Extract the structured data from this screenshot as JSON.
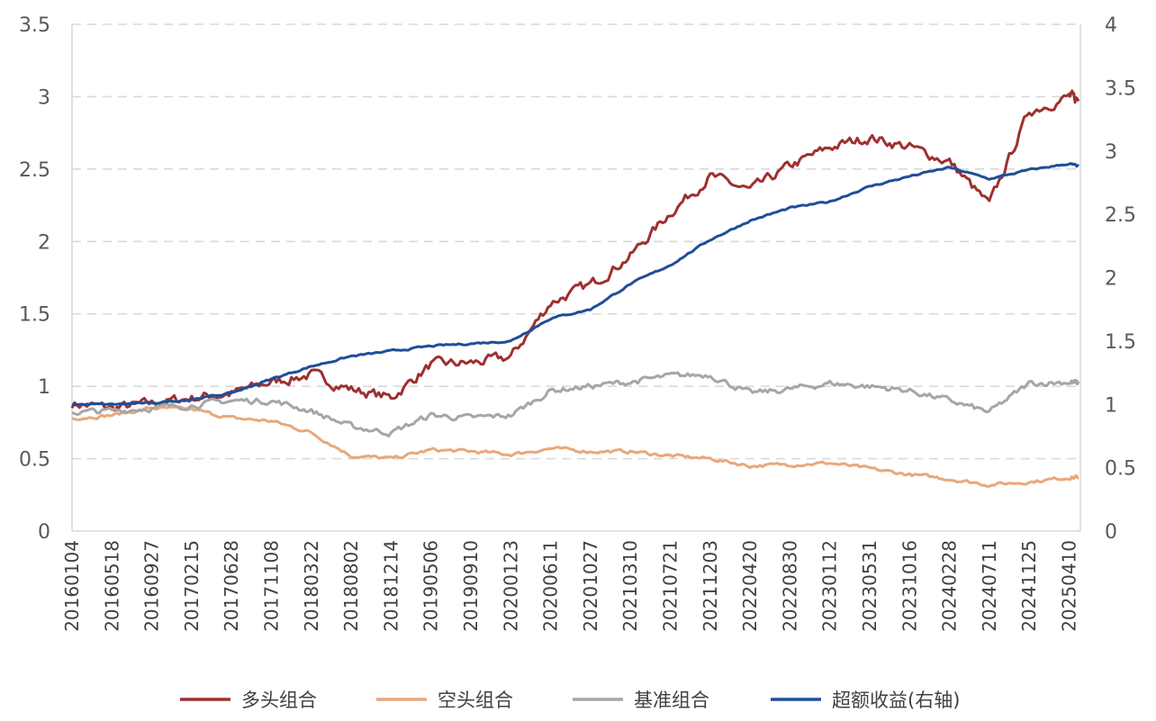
{
  "chart_data": {
    "type": "line",
    "title": "",
    "xlabel": "",
    "ylabel": "",
    "y2label": "超额收益(右轴)",
    "ylim": [
      0,
      3.5
    ],
    "y2lim": [
      0,
      4
    ],
    "yticks": [
      "0",
      "0.5",
      "1",
      "1.5",
      "2",
      "2.5",
      "3",
      "3.5"
    ],
    "y2ticks": [
      "0",
      "0.5",
      "1",
      "1.5",
      "2",
      "2.5",
      "3",
      "3.5",
      "4"
    ],
    "grid": true,
    "legend_position": "bottom",
    "x": [
      "20160104",
      "20160518",
      "20160927",
      "20170215",
      "20170628",
      "20171108",
      "20180322",
      "20180802",
      "20181214",
      "20190506",
      "20190910",
      "20200123",
      "20200611",
      "20201027",
      "20210310",
      "20210721",
      "20211203",
      "20220420",
      "20220830",
      "20230112",
      "20230531",
      "20231016",
      "20240228",
      "20240711",
      "20241125",
      "20250410"
    ],
    "x_end": "20250625",
    "series": [
      {
        "name": "多头组合",
        "axis": "left",
        "color": "#9e3030",
        "values": [
          0.88,
          0.85,
          0.88,
          0.92,
          0.95,
          1.03,
          1.08,
          0.98,
          0.92,
          1.15,
          1.16,
          1.2,
          1.58,
          1.7,
          1.9,
          2.2,
          2.45,
          2.35,
          2.52,
          2.65,
          2.72,
          2.65,
          2.55,
          2.25,
          2.9,
          3.0
        ],
        "end_value": 2.98
      },
      {
        "name": "空头组合",
        "axis": "left",
        "color": "#e8a87c",
        "values": [
          0.78,
          0.8,
          0.85,
          0.84,
          0.78,
          0.76,
          0.68,
          0.52,
          0.5,
          0.56,
          0.55,
          0.53,
          0.57,
          0.55,
          0.55,
          0.52,
          0.5,
          0.45,
          0.46,
          0.47,
          0.43,
          0.39,
          0.36,
          0.32,
          0.34,
          0.37
        ],
        "end_value": 0.37
      },
      {
        "name": "基准组合",
        "axis": "left",
        "color": "#a6a6a6",
        "values": [
          0.82,
          0.83,
          0.85,
          0.87,
          0.9,
          0.9,
          0.83,
          0.72,
          0.68,
          0.8,
          0.78,
          0.8,
          0.97,
          1.0,
          1.03,
          1.07,
          1.08,
          0.95,
          0.98,
          1.02,
          1.0,
          0.97,
          0.9,
          0.82,
          1.02,
          1.03
        ],
        "end_value": 1.02
      },
      {
        "name": "超额收益(右轴)",
        "axis": "right",
        "color": "#1f4e9a",
        "values": [
          1.0,
          1.0,
          1.01,
          1.04,
          1.09,
          1.2,
          1.3,
          1.38,
          1.42,
          1.46,
          1.48,
          1.5,
          1.68,
          1.75,
          1.95,
          2.1,
          2.3,
          2.45,
          2.55,
          2.6,
          2.72,
          2.8,
          2.87,
          2.78,
          2.85,
          2.9
        ],
        "end_value": 2.88
      }
    ]
  }
}
